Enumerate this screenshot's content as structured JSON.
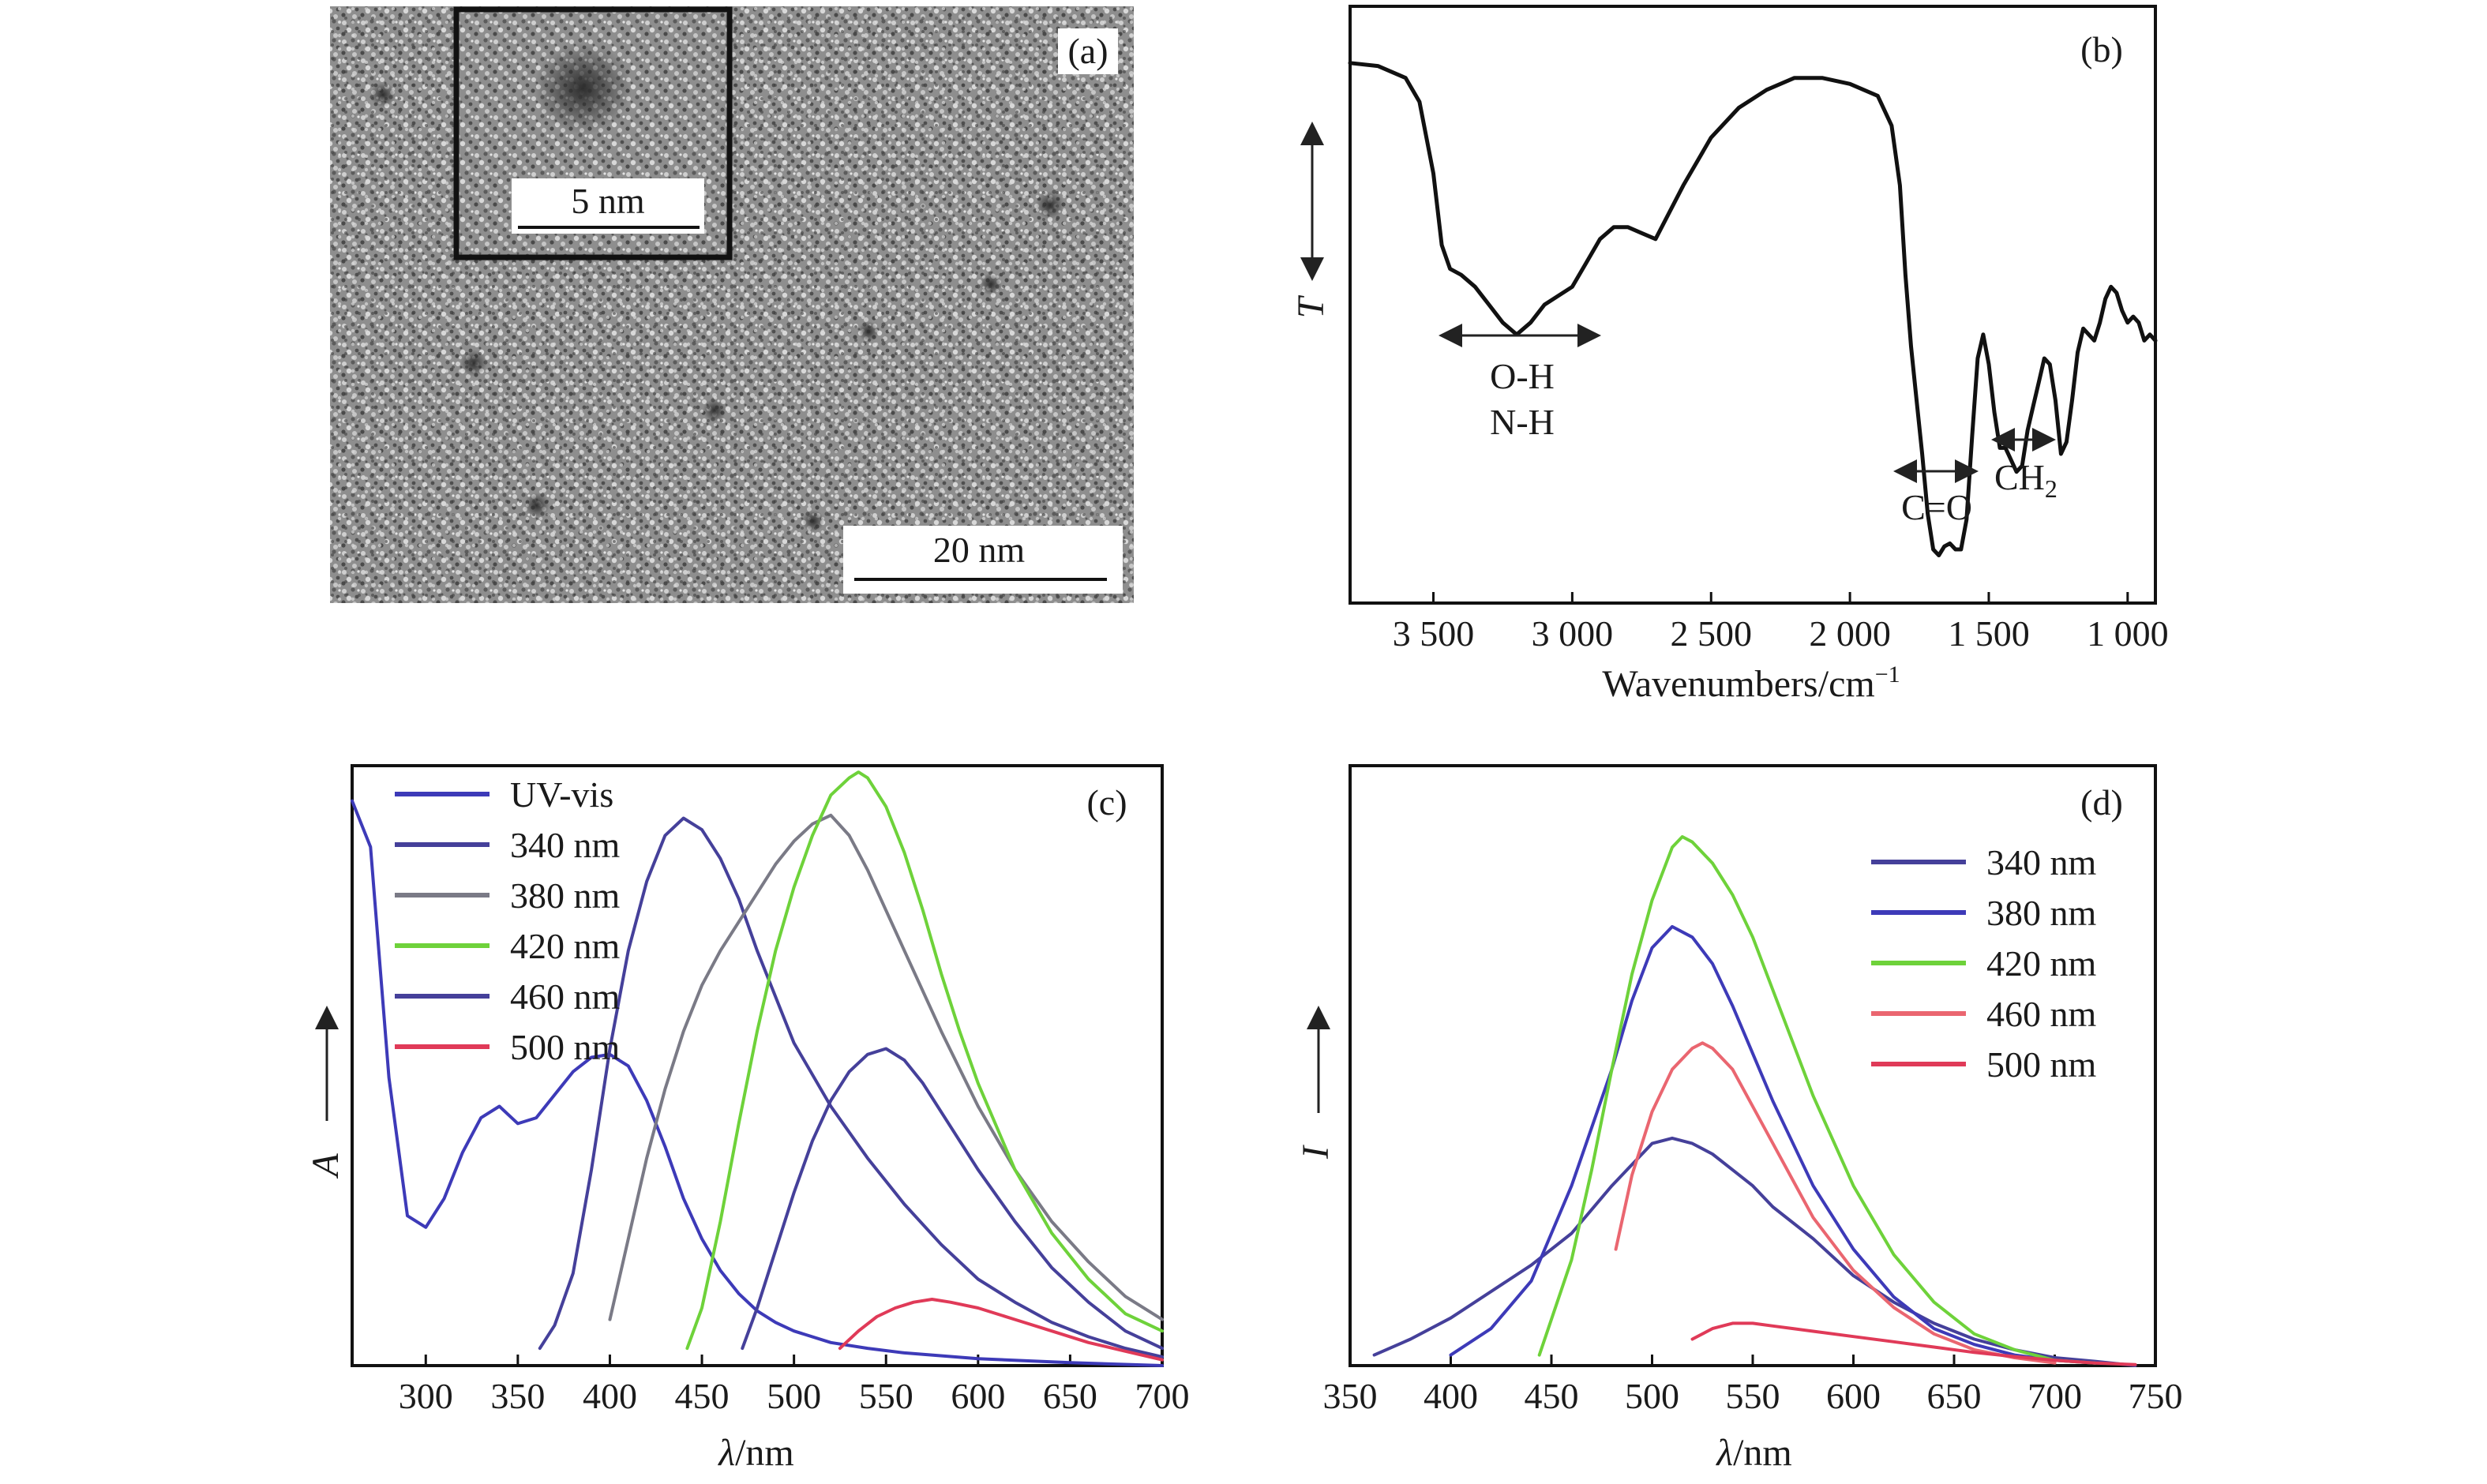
{
  "colors": {
    "uv_vis": "#3d3ab8",
    "purple_blue": "#45409a",
    "gray": "#7a7a86",
    "green": "#6ed23a",
    "red": "#e03a58",
    "salmon": "#ea6670",
    "tem_background": "#8f8f8f"
  },
  "panels": {
    "a": {
      "label": "(a)",
      "scale_bar_main": "20 nm",
      "scale_bar_inset": "5 nm"
    },
    "b": {
      "label": "(b)",
      "ylabel": "T",
      "xlabel_main": "Wavenumbers/cm",
      "xlabel_sup": "−1",
      "annotations": {
        "oh": "O-H",
        "nh": "N-H",
        "co": "C=O",
        "ch_main": "CH",
        "ch_sub": "2"
      }
    },
    "c": {
      "label": "(c)",
      "ylabel": "A",
      "xlabel_sym": "λ",
      "xlabel_unit": "/nm",
      "legend": [
        "UV-vis",
        "340 nm",
        "380 nm",
        "420 nm",
        "460 nm",
        "500 nm"
      ]
    },
    "d": {
      "label": "(d)",
      "ylabel": "I",
      "xlabel_sym": "λ",
      "xlabel_unit": "/nm",
      "legend": [
        "340 nm",
        "380 nm",
        "420 nm",
        "460 nm",
        "500 nm"
      ]
    }
  },
  "chart_data": [
    {
      "panel": "b",
      "type": "line",
      "x_reversed": true,
      "xlim": [
        3800,
        900
      ],
      "ylim": [
        0,
        1
      ],
      "x_ticks": [
        3500,
        3000,
        2500,
        2000,
        1500,
        1000
      ],
      "x_tick_labels": [
        "3 500",
        "3 000",
        "2 500",
        "2 000",
        "1 500",
        "1 000"
      ],
      "series": [
        {
          "color": "#111111",
          "x": [
            3800,
            3700,
            3600,
            3550,
            3500,
            3470,
            3440,
            3400,
            3350,
            3300,
            3250,
            3200,
            3150,
            3100,
            3000,
            2950,
            2900,
            2850,
            2800,
            2750,
            2700,
            2600,
            2500,
            2400,
            2300,
            2200,
            2100,
            2000,
            1900,
            1850,
            1820,
            1800,
            1780,
            1760,
            1740,
            1720,
            1700,
            1680,
            1660,
            1640,
            1620,
            1600,
            1580,
            1560,
            1540,
            1520,
            1500,
            1480,
            1460,
            1440,
            1420,
            1400,
            1380,
            1360,
            1340,
            1320,
            1300,
            1280,
            1260,
            1240,
            1220,
            1200,
            1180,
            1160,
            1140,
            1120,
            1100,
            1080,
            1060,
            1040,
            1020,
            1000,
            980,
            960,
            940,
            920,
            900
          ],
          "y": [
            0.905,
            0.9,
            0.88,
            0.84,
            0.72,
            0.6,
            0.56,
            0.55,
            0.53,
            0.5,
            0.47,
            0.45,
            0.47,
            0.5,
            0.53,
            0.57,
            0.61,
            0.63,
            0.63,
            0.62,
            0.61,
            0.7,
            0.78,
            0.83,
            0.86,
            0.88,
            0.88,
            0.87,
            0.85,
            0.8,
            0.7,
            0.55,
            0.43,
            0.34,
            0.25,
            0.15,
            0.09,
            0.08,
            0.095,
            0.1,
            0.09,
            0.09,
            0.14,
            0.28,
            0.41,
            0.45,
            0.4,
            0.32,
            0.26,
            0.26,
            0.24,
            0.22,
            0.23,
            0.29,
            0.33,
            0.37,
            0.41,
            0.4,
            0.34,
            0.25,
            0.27,
            0.34,
            0.42,
            0.46,
            0.45,
            0.44,
            0.47,
            0.51,
            0.53,
            0.52,
            0.49,
            0.47,
            0.48,
            0.47,
            0.44,
            0.45,
            0.44
          ]
        }
      ]
    },
    {
      "panel": "c",
      "type": "line",
      "xlim": [
        260,
        700
      ],
      "ylim": [
        0,
        1
      ],
      "x_ticks": [
        300,
        350,
        400,
        450,
        500,
        550,
        600,
        650,
        700
      ],
      "series": [
        {
          "name": "UV-vis",
          "color": "#3d3ab8",
          "x": [
            260,
            270,
            280,
            290,
            300,
            310,
            320,
            330,
            340,
            350,
            360,
            370,
            380,
            390,
            400,
            410,
            420,
            430,
            440,
            450,
            460,
            470,
            480,
            490,
            500,
            520,
            540,
            560,
            600,
            650,
            700
          ],
          "y": [
            0.98,
            0.9,
            0.5,
            0.26,
            0.24,
            0.29,
            0.37,
            0.43,
            0.45,
            0.42,
            0.43,
            0.47,
            0.51,
            0.535,
            0.54,
            0.52,
            0.46,
            0.38,
            0.29,
            0.22,
            0.165,
            0.125,
            0.095,
            0.075,
            0.06,
            0.04,
            0.03,
            0.022,
            0.012,
            0.005,
            0.0
          ]
        },
        {
          "name": "340 nm",
          "color": "#45409a",
          "x": [
            362,
            370,
            380,
            390,
            400,
            410,
            420,
            430,
            440,
            450,
            460,
            470,
            480,
            490,
            500,
            520,
            540,
            560,
            580,
            600,
            620,
            640,
            660,
            680,
            700
          ],
          "y": [
            0.03,
            0.07,
            0.16,
            0.34,
            0.55,
            0.72,
            0.84,
            0.92,
            0.95,
            0.93,
            0.88,
            0.81,
            0.72,
            0.64,
            0.56,
            0.45,
            0.36,
            0.28,
            0.21,
            0.15,
            0.11,
            0.075,
            0.05,
            0.03,
            0.015
          ]
        },
        {
          "name": "380 nm",
          "color": "#7a7a86",
          "x": [
            400,
            410,
            420,
            430,
            440,
            450,
            460,
            470,
            480,
            490,
            500,
            510,
            520,
            530,
            540,
            550,
            560,
            580,
            600,
            620,
            640,
            660,
            680,
            700
          ],
          "y": [
            0.08,
            0.22,
            0.36,
            0.48,
            0.58,
            0.66,
            0.72,
            0.77,
            0.82,
            0.87,
            0.91,
            0.94,
            0.955,
            0.92,
            0.86,
            0.79,
            0.72,
            0.58,
            0.45,
            0.34,
            0.25,
            0.18,
            0.12,
            0.08
          ]
        },
        {
          "name": "420 nm",
          "color": "#6ed23a",
          "x": [
            442,
            450,
            460,
            470,
            480,
            490,
            500,
            510,
            520,
            530,
            535,
            540,
            550,
            560,
            570,
            580,
            590,
            600,
            620,
            640,
            660,
            680,
            700
          ],
          "y": [
            0.03,
            0.1,
            0.25,
            0.42,
            0.58,
            0.72,
            0.83,
            0.92,
            0.99,
            1.02,
            1.03,
            1.02,
            0.97,
            0.89,
            0.79,
            0.68,
            0.58,
            0.49,
            0.34,
            0.23,
            0.15,
            0.09,
            0.06
          ]
        },
        {
          "name": "460 nm",
          "color": "#45409a",
          "x": [
            472,
            480,
            490,
            500,
            510,
            520,
            530,
            540,
            550,
            560,
            570,
            580,
            600,
            620,
            640,
            660,
            680,
            700
          ],
          "y": [
            0.03,
            0.1,
            0.2,
            0.3,
            0.39,
            0.46,
            0.51,
            0.54,
            0.55,
            0.53,
            0.49,
            0.44,
            0.34,
            0.25,
            0.17,
            0.11,
            0.06,
            0.03
          ]
        },
        {
          "name": "500 nm",
          "color": "#e03a58",
          "x": [
            525,
            535,
            545,
            555,
            565,
            575,
            585,
            600,
            620,
            640,
            660,
            680,
            700
          ],
          "y": [
            0.03,
            0.06,
            0.085,
            0.1,
            0.11,
            0.115,
            0.11,
            0.1,
            0.08,
            0.06,
            0.04,
            0.025,
            0.01
          ]
        }
      ]
    },
    {
      "panel": "d",
      "type": "line",
      "xlim": [
        350,
        750
      ],
      "ylim": [
        0,
        1
      ],
      "x_ticks": [
        350,
        400,
        450,
        500,
        550,
        600,
        650,
        700,
        750
      ],
      "series": [
        {
          "name": "340 nm",
          "color": "#45409a",
          "x": [
            362,
            380,
            400,
            420,
            440,
            460,
            480,
            490,
            500,
            510,
            520,
            530,
            540,
            550,
            560,
            580,
            600,
            620,
            640,
            660,
            680,
            700,
            720,
            740
          ],
          "y": [
            0.02,
            0.05,
            0.09,
            0.14,
            0.19,
            0.25,
            0.34,
            0.38,
            0.42,
            0.43,
            0.42,
            0.4,
            0.37,
            0.34,
            0.3,
            0.24,
            0.17,
            0.12,
            0.08,
            0.05,
            0.03,
            0.015,
            0.008,
            0.0
          ]
        },
        {
          "name": "380 nm",
          "color": "#3d3ab8",
          "x": [
            400,
            420,
            440,
            460,
            480,
            490,
            500,
            510,
            520,
            530,
            540,
            550,
            560,
            580,
            600,
            620,
            640,
            660,
            680,
            700,
            720
          ],
          "y": [
            0.02,
            0.07,
            0.16,
            0.34,
            0.56,
            0.69,
            0.79,
            0.83,
            0.81,
            0.76,
            0.68,
            0.59,
            0.5,
            0.34,
            0.22,
            0.13,
            0.07,
            0.04,
            0.02,
            0.01,
            0.005
          ]
        },
        {
          "name": "420 nm",
          "color": "#6ed23a",
          "x": [
            444,
            460,
            470,
            480,
            490,
            500,
            510,
            515,
            520,
            530,
            540,
            550,
            560,
            570,
            580,
            600,
            620,
            640,
            660,
            680,
            700,
            720
          ],
          "y": [
            0.02,
            0.2,
            0.37,
            0.56,
            0.74,
            0.88,
            0.98,
            1.0,
            0.99,
            0.95,
            0.89,
            0.81,
            0.71,
            0.61,
            0.51,
            0.34,
            0.21,
            0.12,
            0.06,
            0.03,
            0.01,
            0.005
          ]
        },
        {
          "name": "460 nm",
          "color": "#ea6670",
          "x": [
            482,
            490,
            500,
            510,
            520,
            525,
            530,
            540,
            550,
            560,
            570,
            580,
            600,
            620,
            640,
            660,
            680,
            700
          ],
          "y": [
            0.22,
            0.36,
            0.48,
            0.56,
            0.6,
            0.61,
            0.6,
            0.56,
            0.49,
            0.42,
            0.35,
            0.28,
            0.18,
            0.11,
            0.06,
            0.03,
            0.015,
            0.005
          ]
        },
        {
          "name": "500 nm",
          "color": "#e03a58",
          "x": [
            520,
            530,
            540,
            550,
            560,
            570,
            580,
            600,
            620,
            640,
            660,
            680,
            700,
            720,
            740
          ],
          "y": [
            0.05,
            0.07,
            0.08,
            0.08,
            0.075,
            0.07,
            0.065,
            0.055,
            0.045,
            0.035,
            0.025,
            0.017,
            0.01,
            0.005,
            0.002
          ]
        }
      ]
    }
  ]
}
